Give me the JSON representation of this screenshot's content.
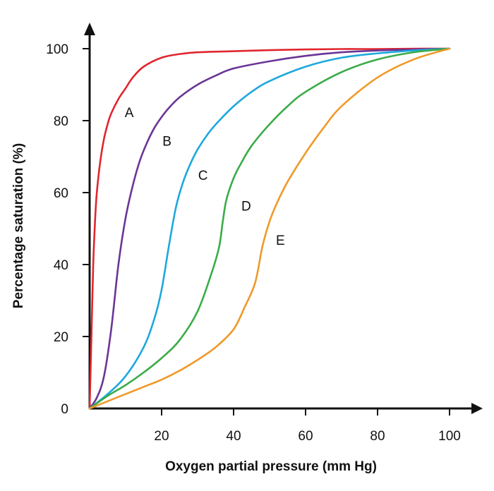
{
  "chart_data": {
    "type": "line",
    "title": "",
    "xlabel": "Oxygen partial pressure (mm Hg)",
    "ylabel": "Percentage saturation (%)",
    "xlim": [
      0,
      100
    ],
    "ylim": [
      0,
      100
    ],
    "x_ticks": [
      "20",
      "40",
      "60",
      "80",
      "100"
    ],
    "y_ticks": [
      "0",
      "20",
      "40",
      "60",
      "80",
      "100"
    ],
    "grid": false,
    "legend": "none",
    "series": [
      {
        "name": "A",
        "color": "#e0262e",
        "x": [
          0,
          0.5,
          1,
          1.5,
          2,
          3,
          4,
          5,
          6,
          8,
          10,
          12,
          15,
          20,
          25,
          30,
          40,
          50,
          60,
          70,
          80,
          90,
          100
        ],
        "y": [
          0,
          20,
          40,
          52,
          60,
          69,
          75,
          79,
          82,
          86,
          89,
          92,
          95,
          97.5,
          98.5,
          99,
          99.3,
          99.6,
          99.8,
          99.9,
          99.9,
          100,
          100
        ]
      },
      {
        "name": "B",
        "color": "#6a3596",
        "x": [
          0,
          2,
          4,
          6,
          8,
          10,
          12,
          14,
          16,
          18,
          20,
          22,
          25,
          30,
          35,
          40,
          50,
          60,
          70,
          80,
          90,
          100
        ],
        "y": [
          0,
          3,
          9,
          22,
          40,
          53,
          62,
          69,
          74,
          78,
          81,
          83.5,
          86.5,
          90,
          92.5,
          94.5,
          96.5,
          98,
          99,
          99.5,
          99.8,
          100
        ]
      },
      {
        "name": "C",
        "color": "#1ea8dc",
        "x": [
          0,
          5,
          10,
          15,
          18,
          20,
          22,
          24,
          26,
          28,
          30,
          33,
          36,
          40,
          45,
          50,
          60,
          70,
          80,
          90,
          100
        ],
        "y": [
          0,
          4,
          9,
          17,
          25,
          33,
          45,
          56,
          63,
          68,
          72,
          76.5,
          80,
          84,
          88,
          91,
          95,
          97.5,
          98.7,
          99.5,
          100
        ]
      },
      {
        "name": "D",
        "color": "#3aac48",
        "x": [
          0,
          5,
          10,
          15,
          20,
          25,
          30,
          34,
          36,
          37,
          38,
          40,
          42,
          45,
          50,
          55,
          60,
          70,
          80,
          90,
          100
        ],
        "y": [
          0,
          3.5,
          6.5,
          10,
          14,
          19,
          27,
          38,
          45,
          52,
          58,
          64,
          68,
          73,
          79,
          84,
          88,
          93.5,
          97,
          99,
          100
        ]
      },
      {
        "name": "E",
        "color": "#ef9a2a",
        "x": [
          0,
          5,
          10,
          15,
          20,
          25,
          30,
          35,
          40,
          43,
          46,
          48,
          50,
          52,
          55,
          60,
          65,
          70,
          80,
          90,
          100
        ],
        "y": [
          0,
          2,
          4,
          6,
          8,
          10.5,
          13.5,
          17,
          22,
          28,
          35,
          45,
          52,
          57,
          63,
          71,
          78,
          84,
          92,
          97,
          100
        ]
      }
    ],
    "annotations": [
      {
        "text": "A",
        "x": 11,
        "y": 81
      },
      {
        "text": "B",
        "x": 21.5,
        "y": 73
      },
      {
        "text": "C",
        "x": 31.5,
        "y": 63.5
      },
      {
        "text": "D",
        "x": 43.5,
        "y": 55
      },
      {
        "text": "E",
        "x": 53,
        "y": 45.5
      }
    ]
  }
}
